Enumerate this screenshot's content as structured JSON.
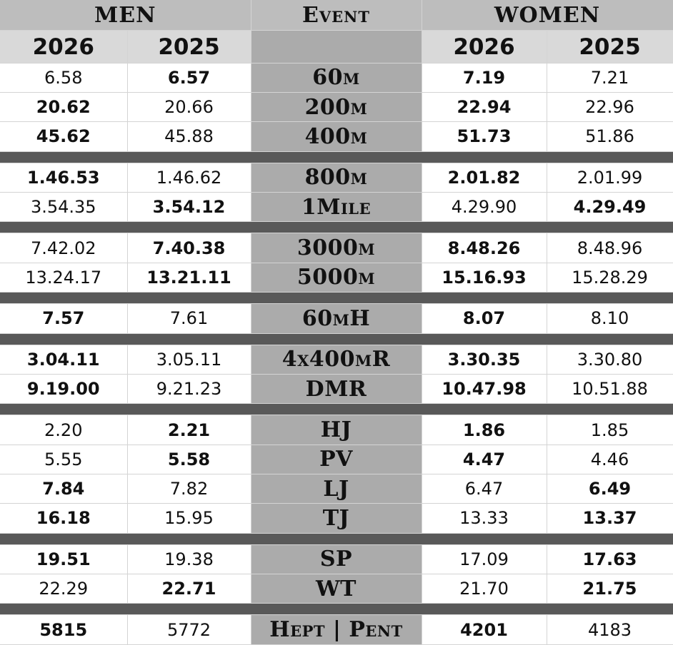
{
  "header": {
    "men_label": "MEN",
    "event_label": "Event",
    "women_label": "WOMEN",
    "men_years": [
      "2026",
      "2025"
    ],
    "women_years": [
      "2026",
      "2025"
    ]
  },
  "groups": [
    {
      "rows": [
        {
          "event": "60m",
          "men": [
            {
              "v": "6.58",
              "b": false
            },
            {
              "v": "6.57",
              "b": true
            }
          ],
          "women": [
            {
              "v": "7.19",
              "b": true
            },
            {
              "v": "7.21",
              "b": false
            }
          ]
        },
        {
          "event": "200m",
          "men": [
            {
              "v": "20.62",
              "b": true
            },
            {
              "v": "20.66",
              "b": false
            }
          ],
          "women": [
            {
              "v": "22.94",
              "b": true
            },
            {
              "v": "22.96",
              "b": false
            }
          ]
        },
        {
          "event": "400m",
          "men": [
            {
              "v": "45.62",
              "b": true
            },
            {
              "v": "45.88",
              "b": false
            }
          ],
          "women": [
            {
              "v": "51.73",
              "b": true
            },
            {
              "v": "51.86",
              "b": false
            }
          ]
        }
      ]
    },
    {
      "rows": [
        {
          "event": "800m",
          "men": [
            {
              "v": "1.46.53",
              "b": true
            },
            {
              "v": "1.46.62",
              "b": false
            }
          ],
          "women": [
            {
              "v": "2.01.82",
              "b": true
            },
            {
              "v": "2.01.99",
              "b": false
            }
          ]
        },
        {
          "event": "1Mile",
          "men": [
            {
              "v": "3.54.35",
              "b": false
            },
            {
              "v": "3.54.12",
              "b": true
            }
          ],
          "women": [
            {
              "v": "4.29.90",
              "b": false
            },
            {
              "v": "4.29.49",
              "b": true
            }
          ]
        }
      ]
    },
    {
      "rows": [
        {
          "event": "3000m",
          "men": [
            {
              "v": "7.42.02",
              "b": false
            },
            {
              "v": "7.40.38",
              "b": true
            }
          ],
          "women": [
            {
              "v": "8.48.26",
              "b": true
            },
            {
              "v": "8.48.96",
              "b": false
            }
          ]
        },
        {
          "event": "5000m",
          "men": [
            {
              "v": "13.24.17",
              "b": false
            },
            {
              "v": "13.21.11",
              "b": true
            }
          ],
          "women": [
            {
              "v": "15.16.93",
              "b": true
            },
            {
              "v": "15.28.29",
              "b": false
            }
          ]
        }
      ]
    },
    {
      "rows": [
        {
          "event": "60mH",
          "men": [
            {
              "v": "7.57",
              "b": true
            },
            {
              "v": "7.61",
              "b": false
            }
          ],
          "women": [
            {
              "v": "8.07",
              "b": true
            },
            {
              "v": "8.10",
              "b": false
            }
          ]
        }
      ]
    },
    {
      "rows": [
        {
          "event": "4x400mR",
          "men": [
            {
              "v": "3.04.11",
              "b": true
            },
            {
              "v": "3.05.11",
              "b": false
            }
          ],
          "women": [
            {
              "v": "3.30.35",
              "b": true
            },
            {
              "v": "3.30.80",
              "b": false
            }
          ]
        },
        {
          "event": "DMR",
          "men": [
            {
              "v": "9.19.00",
              "b": true
            },
            {
              "v": "9.21.23",
              "b": false
            }
          ],
          "women": [
            {
              "v": "10.47.98",
              "b": true
            },
            {
              "v": "10.51.88",
              "b": false
            }
          ]
        }
      ]
    },
    {
      "rows": [
        {
          "event": "HJ",
          "men": [
            {
              "v": "2.20",
              "b": false
            },
            {
              "v": "2.21",
              "b": true
            }
          ],
          "women": [
            {
              "v": "1.86",
              "b": true
            },
            {
              "v": "1.85",
              "b": false
            }
          ]
        },
        {
          "event": "PV",
          "men": [
            {
              "v": "5.55",
              "b": false
            },
            {
              "v": "5.58",
              "b": true
            }
          ],
          "women": [
            {
              "v": "4.47",
              "b": true
            },
            {
              "v": "4.46",
              "b": false
            }
          ]
        },
        {
          "event": "LJ",
          "men": [
            {
              "v": "7.84",
              "b": true
            },
            {
              "v": "7.82",
              "b": false
            }
          ],
          "women": [
            {
              "v": "6.47",
              "b": false
            },
            {
              "v": "6.49",
              "b": true
            }
          ]
        },
        {
          "event": "TJ",
          "men": [
            {
              "v": "16.18",
              "b": true
            },
            {
              "v": "15.95",
              "b": false
            }
          ],
          "women": [
            {
              "v": "13.33",
              "b": false
            },
            {
              "v": "13.37",
              "b": true
            }
          ]
        }
      ]
    },
    {
      "rows": [
        {
          "event": "SP",
          "men": [
            {
              "v": "19.51",
              "b": true
            },
            {
              "v": "19.38",
              "b": false
            }
          ],
          "women": [
            {
              "v": "17.09",
              "b": false
            },
            {
              "v": "17.63",
              "b": true
            }
          ]
        },
        {
          "event": "WT",
          "men": [
            {
              "v": "22.29",
              "b": false
            },
            {
              "v": "22.71",
              "b": true
            }
          ],
          "women": [
            {
              "v": "21.70",
              "b": false
            },
            {
              "v": "21.75",
              "b": true
            }
          ]
        }
      ]
    },
    {
      "rows": [
        {
          "event": "Hept | Pent",
          "men": [
            {
              "v": "5815",
              "b": true
            },
            {
              "v": "5772",
              "b": false
            }
          ],
          "women": [
            {
              "v": "4201",
              "b": true
            },
            {
              "v": "4183",
              "b": false
            }
          ]
        }
      ]
    }
  ],
  "colors": {
    "header_bg": "#bdbdbd",
    "year_bg": "#d9d9d9",
    "event_col_bg": "#ababab",
    "separator": "#595959"
  }
}
